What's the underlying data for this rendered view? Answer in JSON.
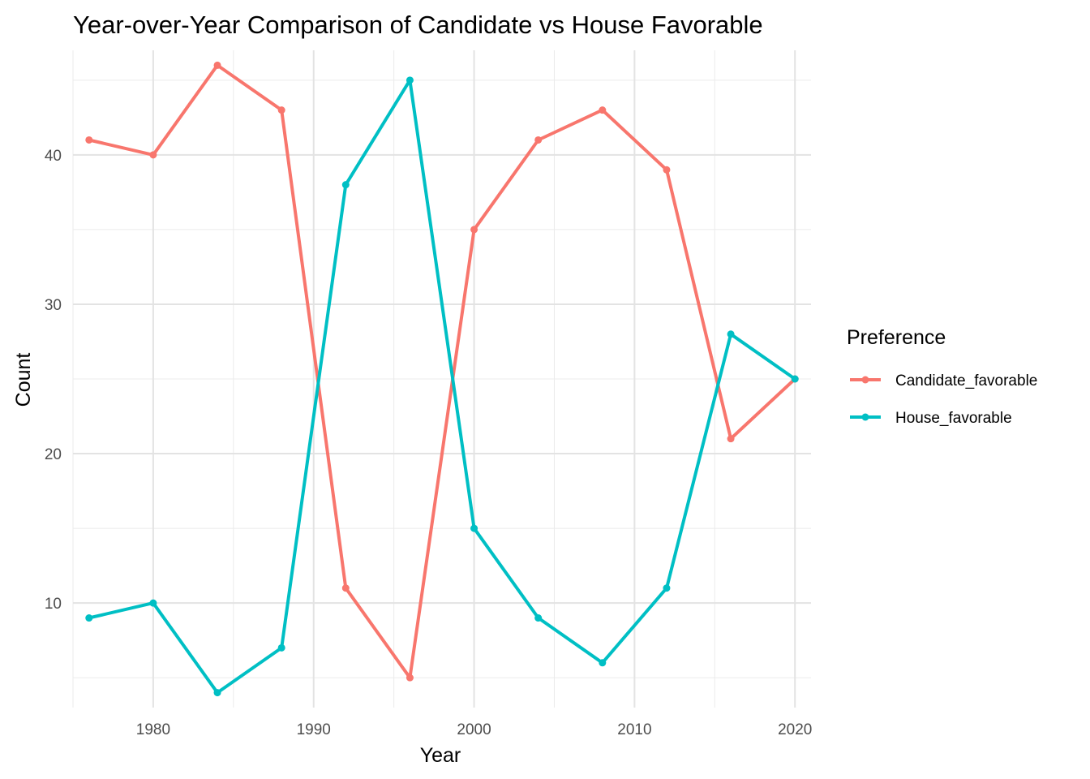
{
  "chart_data": {
    "type": "line",
    "title": "Year-over-Year Comparison of Candidate vs House Favorable",
    "xlabel": "Year",
    "ylabel": "Count",
    "x": [
      1976,
      1980,
      1984,
      1988,
      1992,
      1996,
      2000,
      2004,
      2008,
      2012,
      2016,
      2020
    ],
    "xlim": [
      1975,
      2021
    ],
    "ylim": [
      3,
      47
    ],
    "x_ticks": [
      1980,
      1990,
      2000,
      2010,
      2020
    ],
    "y_ticks": [
      10,
      20,
      30,
      40
    ],
    "grid": true,
    "legend": {
      "title": "Preference",
      "position": "right"
    },
    "series": [
      {
        "name": "Candidate_favorable",
        "color": "#f8766d",
        "values": [
          41,
          40,
          46,
          43,
          11,
          5,
          35,
          41,
          43,
          39,
          21,
          25
        ]
      },
      {
        "name": "House_favorable",
        "color": "#00bfc4",
        "values": [
          9,
          10,
          4,
          7,
          38,
          45,
          15,
          9,
          6,
          11,
          28,
          25
        ]
      }
    ]
  }
}
